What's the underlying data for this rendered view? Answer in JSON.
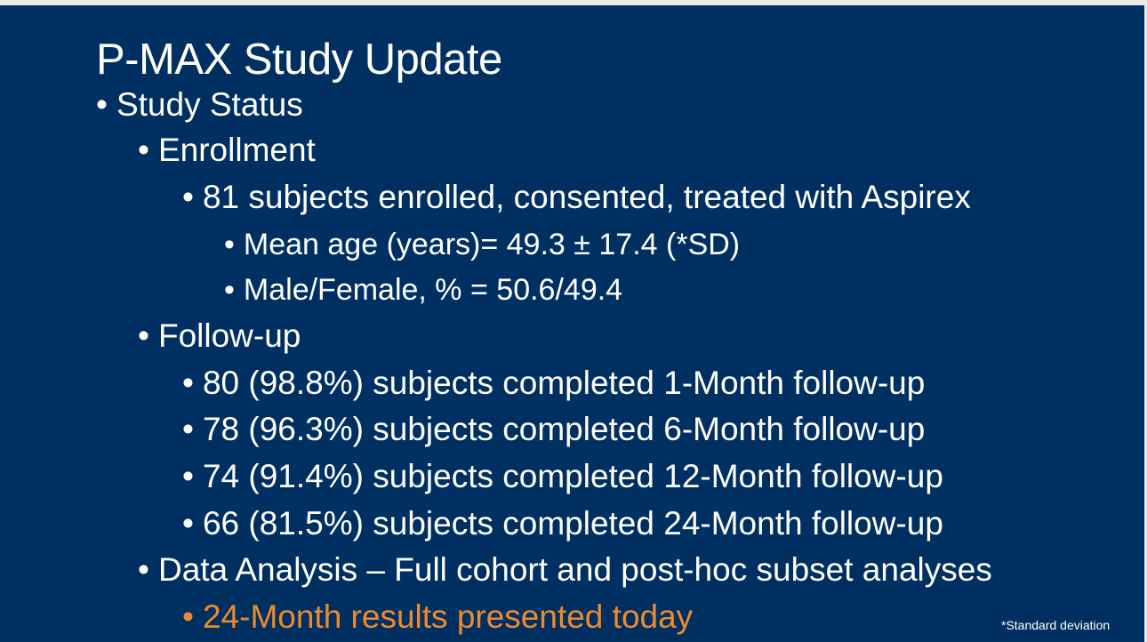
{
  "slide": {
    "title": "P-MAX Study Update",
    "bullet_char": "•",
    "bullets": [
      {
        "text": "Study Status"
      },
      {
        "text": "Enrollment"
      },
      {
        "text": "81 subjects enrolled, consented, treated with Aspirex"
      },
      {
        "text": "Mean age (years)= 49.3 ± 17.4 (*SD)"
      },
      {
        "text": "Male/Female, % = 50.6/49.4"
      },
      {
        "text": "Follow-up"
      },
      {
        "text": "80 (98.8%) subjects completed 1-Month follow-up"
      },
      {
        "text": "78 (96.3%) subjects completed 6-Month follow-up"
      },
      {
        "text": "74 (91.4%) subjects completed 12-Month follow-up"
      },
      {
        "text": "66 (81.5%) subjects completed 24-Month follow-up"
      },
      {
        "text": "Data Analysis – Full cohort and post-hoc subset analyses"
      },
      {
        "text": "24-Month results presented today"
      }
    ],
    "footnote": "*Standard deviation"
  },
  "colors": {
    "background": "#003062",
    "text": "#ffffff",
    "highlight": "#ee8a2e"
  }
}
